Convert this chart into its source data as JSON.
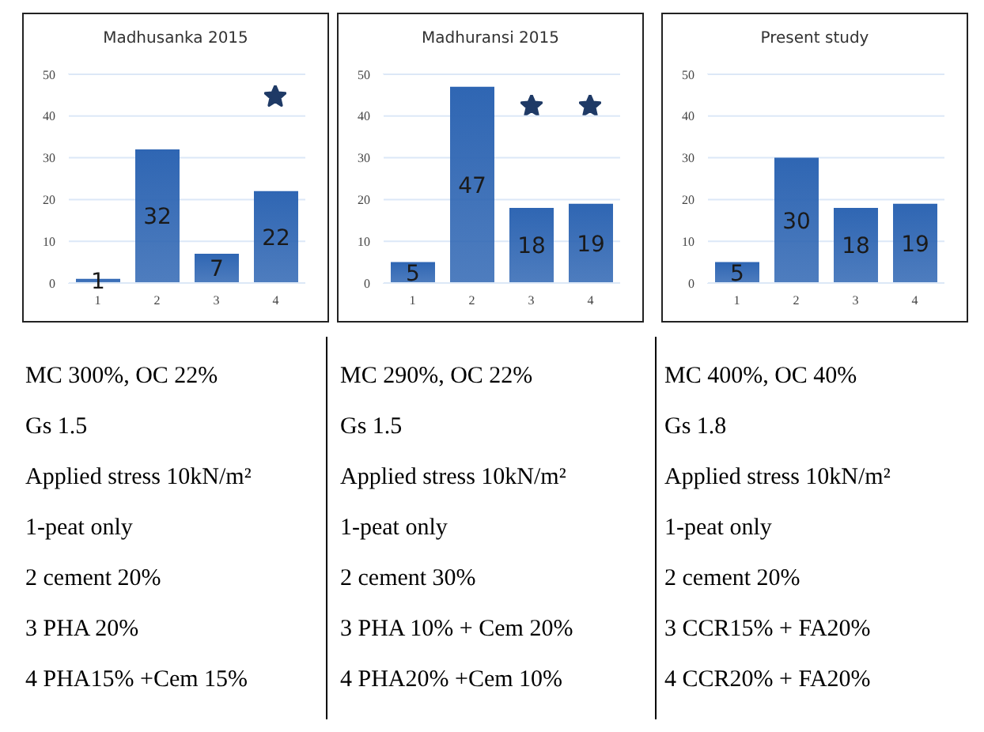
{
  "chart_data": [
    {
      "type": "bar",
      "title": "Madhusanka 2015",
      "categories": [
        "1",
        "2",
        "3",
        "4"
      ],
      "values": [
        1,
        32,
        7,
        22
      ],
      "color": "#2f66b3",
      "ylim": [
        0,
        50
      ],
      "yticks": [
        0,
        10,
        20,
        30,
        40,
        50
      ],
      "grid": "y",
      "data_labels": true,
      "annotations": [
        "MC 300%, OC 22%",
        "Gs 1.5",
        "Applied stress 10kN/m²",
        "1-peat only",
        "2 cement 20%",
        "3 PHA 20%",
        "4 PHA15% +Cem 15%"
      ]
    },
    {
      "type": "bar",
      "title": "Madhuransi 2015",
      "categories": [
        "1",
        "2",
        "3",
        "4"
      ],
      "values": [
        5,
        47,
        18,
        19
      ],
      "color": "#2f66b3",
      "ylim": [
        0,
        50
      ],
      "yticks": [
        0,
        10,
        20,
        30,
        40,
        50
      ],
      "grid": "y",
      "data_labels": true,
      "annotations": [
        "MC 290%, OC 22%",
        "Gs 1.5",
        "Applied stress 10kN/m²",
        "1-peat only",
        "2 cement 30%",
        "3 PHA 10% + Cem 20%",
        "4 PHA20% +Cem 10%"
      ]
    },
    {
      "type": "bar",
      "title": "Present study",
      "categories": [
        "1",
        "2",
        "3",
        "4"
      ],
      "values": [
        5,
        30,
        18,
        19
      ],
      "color": "#2f66b3",
      "ylim": [
        0,
        50
      ],
      "yticks": [
        0,
        10,
        20,
        30,
        40,
        50
      ],
      "grid": "y",
      "data_labels": true,
      "annotations": [
        "MC 400%, OC 40%",
        "Gs 1.8",
        "Applied stress 10kN/m²",
        "1-peat only",
        "2 cement 20%",
        "3 CCR15% + FA20%",
        "4 CCR20% + FA20%"
      ]
    }
  ]
}
